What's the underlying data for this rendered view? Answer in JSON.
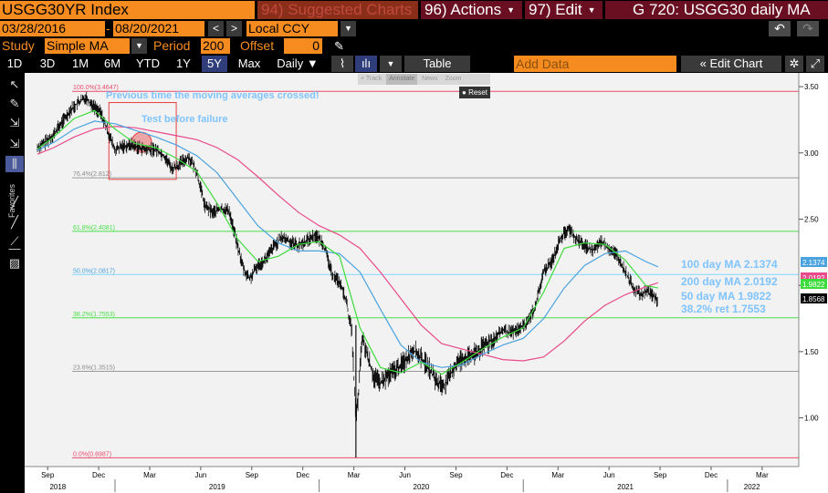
{
  "toolbar": {
    "ticker": "USGG30YR Index",
    "suggested": "94) Suggested Charts",
    "actions": "96) Actions",
    "edit": "97) Edit",
    "title": "G 720: USGG30 daily MA",
    "start_date": "03/28/2016",
    "end_date": "08/20/2021",
    "currency": "Local CCY",
    "study_label": "Study",
    "study_value": "Simple MA",
    "period_label": "Period",
    "period_value": "200",
    "offset_label": "Offset",
    "offset_value": "0",
    "ranges": [
      "1D",
      "3D",
      "1M",
      "6M",
      "YTD",
      "1Y",
      "5Y",
      "Max"
    ],
    "selected_range": "5Y",
    "frequency": "Daily",
    "table_label": "Table",
    "add_data_placeholder": "Add Data",
    "edit_chart_label": "Edit Chart"
  },
  "annotate_bar": {
    "items": [
      "+ Track",
      "Annotate",
      "News",
      "Zoom"
    ],
    "active": "Annotate",
    "reset": "Reset"
  },
  "left_tools": {
    "favorites_label": "Favorites",
    "icons": [
      "cursor-icon",
      "pencil-icon",
      "trend-tool-icon",
      "trend-tool-icon",
      "range-tool-icon",
      "line-tool-icon",
      "line-tool-icon",
      "marker-tool-icon",
      "line-tool-icon",
      "delete-icon"
    ]
  },
  "chart_data": {
    "type": "line",
    "x_axis": {
      "month_ticks": [
        "Sep",
        "Dec",
        "Mar",
        "Jun",
        "Sep",
        "Dec",
        "Mar",
        "Jun",
        "Sep",
        "Dec",
        "Mar",
        "Jun",
        "Sep",
        "Dec",
        "Mar"
      ],
      "year_labels": [
        "2018",
        "2019",
        "2020",
        "2021",
        "2022"
      ],
      "range": [
        "2018-08",
        "2022-04"
      ]
    },
    "y_axis": {
      "position": "right",
      "ticks": [
        "3.50",
        "3.00",
        "2.50",
        "2.00",
        "1.50",
        "1.00"
      ],
      "ylim": [
        0.66,
        3.59
      ]
    },
    "series": [
      {
        "name": "USGG30YR",
        "color": "#ffffff",
        "style": "bar-ohlc",
        "values": [
          [
            2018.62,
            3.04
          ],
          [
            2018.66,
            3.08
          ],
          [
            2018.7,
            3.14
          ],
          [
            2018.74,
            3.23
          ],
          [
            2018.78,
            3.32
          ],
          [
            2018.82,
            3.38
          ],
          [
            2018.86,
            3.42
          ],
          [
            2018.89,
            3.36
          ],
          [
            2018.93,
            3.3
          ],
          [
            2018.97,
            3.14
          ],
          [
            2019.0,
            3.02
          ],
          [
            2019.04,
            3.05
          ],
          [
            2019.08,
            3.06
          ],
          [
            2019.12,
            3.04
          ],
          [
            2019.16,
            3.02
          ],
          [
            2019.2,
            3.03
          ],
          [
            2019.24,
            2.98
          ],
          [
            2019.28,
            2.88
          ],
          [
            2019.32,
            2.92
          ],
          [
            2019.36,
            2.97
          ],
          [
            2019.4,
            2.86
          ],
          [
            2019.44,
            2.6
          ],
          [
            2019.48,
            2.55
          ],
          [
            2019.52,
            2.58
          ],
          [
            2019.56,
            2.56
          ],
          [
            2019.6,
            2.3
          ],
          [
            2019.63,
            2.12
          ],
          [
            2019.66,
            2.05
          ],
          [
            2019.7,
            2.15
          ],
          [
            2019.74,
            2.2
          ],
          [
            2019.78,
            2.3
          ],
          [
            2019.82,
            2.36
          ],
          [
            2019.86,
            2.33
          ],
          [
            2019.9,
            2.3
          ],
          [
            2019.94,
            2.34
          ],
          [
            2019.98,
            2.38
          ],
          [
            2020.02,
            2.32
          ],
          [
            2020.06,
            2.1
          ],
          [
            2020.1,
            2.02
          ],
          [
            2020.13,
            1.9
          ],
          [
            2020.16,
            1.65
          ],
          [
            2020.18,
            0.99
          ],
          [
            2020.19,
            1.12
          ],
          [
            2020.21,
            1.6
          ],
          [
            2020.24,
            1.45
          ],
          [
            2020.27,
            1.3
          ],
          [
            2020.3,
            1.26
          ],
          [
            2020.34,
            1.32
          ],
          [
            2020.38,
            1.37
          ],
          [
            2020.42,
            1.43
          ],
          [
            2020.46,
            1.52
          ],
          [
            2020.5,
            1.45
          ],
          [
            2020.54,
            1.37
          ],
          [
            2020.58,
            1.26
          ],
          [
            2020.62,
            1.25
          ],
          [
            2020.66,
            1.38
          ],
          [
            2020.7,
            1.45
          ],
          [
            2020.74,
            1.46
          ],
          [
            2020.78,
            1.5
          ],
          [
            2020.82,
            1.56
          ],
          [
            2020.86,
            1.6
          ],
          [
            2020.9,
            1.66
          ],
          [
            2020.94,
            1.64
          ],
          [
            2020.98,
            1.67
          ],
          [
            2021.02,
            1.72
          ],
          [
            2021.06,
            1.85
          ],
          [
            2021.1,
            2.1
          ],
          [
            2021.14,
            2.18
          ],
          [
            2021.18,
            2.35
          ],
          [
            2021.22,
            2.43
          ],
          [
            2021.26,
            2.35
          ],
          [
            2021.3,
            2.3
          ],
          [
            2021.34,
            2.26
          ],
          [
            2021.38,
            2.33
          ],
          [
            2021.42,
            2.28
          ],
          [
            2021.46,
            2.23
          ],
          [
            2021.5,
            2.1
          ],
          [
            2021.54,
            1.98
          ],
          [
            2021.58,
            1.92
          ],
          [
            2021.6,
            1.96
          ],
          [
            2021.63,
            1.93
          ],
          [
            2021.65,
            1.9
          ],
          [
            2021.66,
            1.86
          ]
        ]
      },
      {
        "name": "200 day MA",
        "color": "#e94a8a",
        "values": [
          [
            2018.62,
            2.99
          ],
          [
            2018.7,
            3.04
          ],
          [
            2018.8,
            3.12
          ],
          [
            2018.9,
            3.18
          ],
          [
            2019.0,
            3.2
          ],
          [
            2019.1,
            3.19
          ],
          [
            2019.2,
            3.16
          ],
          [
            2019.3,
            3.13
          ],
          [
            2019.4,
            3.1
          ],
          [
            2019.5,
            3.04
          ],
          [
            2019.6,
            2.95
          ],
          [
            2019.7,
            2.82
          ],
          [
            2019.8,
            2.68
          ],
          [
            2019.9,
            2.55
          ],
          [
            2020.0,
            2.45
          ],
          [
            2020.1,
            2.38
          ],
          [
            2020.2,
            2.28
          ],
          [
            2020.3,
            2.1
          ],
          [
            2020.4,
            1.9
          ],
          [
            2020.5,
            1.7
          ],
          [
            2020.6,
            1.56
          ],
          [
            2020.7,
            1.52
          ],
          [
            2020.8,
            1.48
          ],
          [
            2020.9,
            1.44
          ],
          [
            2021.0,
            1.43
          ],
          [
            2021.1,
            1.46
          ],
          [
            2021.2,
            1.58
          ],
          [
            2021.3,
            1.73
          ],
          [
            2021.4,
            1.85
          ],
          [
            2021.5,
            1.93
          ],
          [
            2021.6,
            1.99
          ],
          [
            2021.66,
            2.02
          ]
        ]
      },
      {
        "name": "100 day MA",
        "color": "#4aa3df",
        "values": [
          [
            2018.62,
            3.02
          ],
          [
            2018.7,
            3.08
          ],
          [
            2018.8,
            3.18
          ],
          [
            2018.9,
            3.24
          ],
          [
            2019.0,
            3.22
          ],
          [
            2019.1,
            3.17
          ],
          [
            2019.2,
            3.12
          ],
          [
            2019.3,
            3.06
          ],
          [
            2019.4,
            2.98
          ],
          [
            2019.5,
            2.85
          ],
          [
            2019.6,
            2.65
          ],
          [
            2019.7,
            2.45
          ],
          [
            2019.8,
            2.32
          ],
          [
            2019.9,
            2.26
          ],
          [
            2020.0,
            2.26
          ],
          [
            2020.1,
            2.24
          ],
          [
            2020.2,
            2.1
          ],
          [
            2020.3,
            1.82
          ],
          [
            2020.4,
            1.55
          ],
          [
            2020.5,
            1.42
          ],
          [
            2020.6,
            1.38
          ],
          [
            2020.7,
            1.4
          ],
          [
            2020.8,
            1.48
          ],
          [
            2020.9,
            1.55
          ],
          [
            2021.0,
            1.6
          ],
          [
            2021.1,
            1.75
          ],
          [
            2021.2,
            1.98
          ],
          [
            2021.3,
            2.15
          ],
          [
            2021.4,
            2.24
          ],
          [
            2021.5,
            2.26
          ],
          [
            2021.6,
            2.18
          ],
          [
            2021.66,
            2.14
          ]
        ]
      },
      {
        "name": "50 day MA",
        "color": "#3ddc3d",
        "values": [
          [
            2018.62,
            3.03
          ],
          [
            2018.7,
            3.12
          ],
          [
            2018.8,
            3.26
          ],
          [
            2018.9,
            3.32
          ],
          [
            2019.0,
            3.18
          ],
          [
            2019.1,
            3.07
          ],
          [
            2019.2,
            3.04
          ],
          [
            2019.3,
            2.96
          ],
          [
            2019.4,
            2.86
          ],
          [
            2019.5,
            2.62
          ],
          [
            2019.6,
            2.35
          ],
          [
            2019.7,
            2.18
          ],
          [
            2019.8,
            2.22
          ],
          [
            2019.9,
            2.31
          ],
          [
            2020.0,
            2.33
          ],
          [
            2020.1,
            2.22
          ],
          [
            2020.2,
            1.68
          ],
          [
            2020.3,
            1.38
          ],
          [
            2020.4,
            1.34
          ],
          [
            2020.5,
            1.42
          ],
          [
            2020.6,
            1.33
          ],
          [
            2020.7,
            1.42
          ],
          [
            2020.8,
            1.52
          ],
          [
            2020.9,
            1.61
          ],
          [
            2021.0,
            1.68
          ],
          [
            2021.1,
            1.95
          ],
          [
            2021.2,
            2.28
          ],
          [
            2021.3,
            2.32
          ],
          [
            2021.4,
            2.31
          ],
          [
            2021.5,
            2.19
          ],
          [
            2021.6,
            2.0
          ],
          [
            2021.66,
            1.98
          ]
        ]
      }
    ],
    "fib_levels": [
      {
        "label": "100.0%(3.4647)",
        "value": 3.4647,
        "color": "#ea4b6a"
      },
      {
        "label": "76.4%(2.812)",
        "value": 2.812,
        "color": "#9a9a9a"
      },
      {
        "label": "61.8%(2.4081)",
        "value": 2.4081,
        "color": "#46e046"
      },
      {
        "label": "50.0%(2.0817)",
        "value": 2.0817,
        "color": "#7fd8ff"
      },
      {
        "label": "38.2%(1.7553)",
        "value": 1.7553,
        "color": "#46e046"
      },
      {
        "label": "23.6%(1.3515)",
        "value": 1.3515,
        "color": "#9a9a9a"
      },
      {
        "label": "0.0%(0.6987)",
        "value": 0.6987,
        "color": "#ea4b6a"
      }
    ],
    "annotations": [
      {
        "text": "Previous time the moving averages crossed!",
        "color": "#7fc4ff"
      },
      {
        "text": "Test before failure",
        "color": "#7fc4ff"
      },
      {
        "text": "100 day MA 2.1374",
        "color": "#7fc4ff"
      },
      {
        "text": "200 day MA 2.0192",
        "color": "#7fc4ff"
      },
      {
        "text": "50 day MA 1.9822",
        "color": "#7fc4ff"
      },
      {
        "text": "38.2% ret 1.7553",
        "color": "#7fc4ff"
      }
    ],
    "right_labels": [
      {
        "value": "2.1374",
        "color": "#4aa3df"
      },
      {
        "value": "2.0192",
        "color": "#e94a8a"
      },
      {
        "value": "1.9822",
        "color": "#3ddc3d"
      },
      {
        "value": "1.8568",
        "color": "#000000"
      }
    ],
    "highlight": {
      "box_from": 2018.97,
      "box_to": 2019.3,
      "box_low": 2.8,
      "box_high": 3.38,
      "circle_x": 2019.13,
      "circle_y": 3.08
    }
  }
}
